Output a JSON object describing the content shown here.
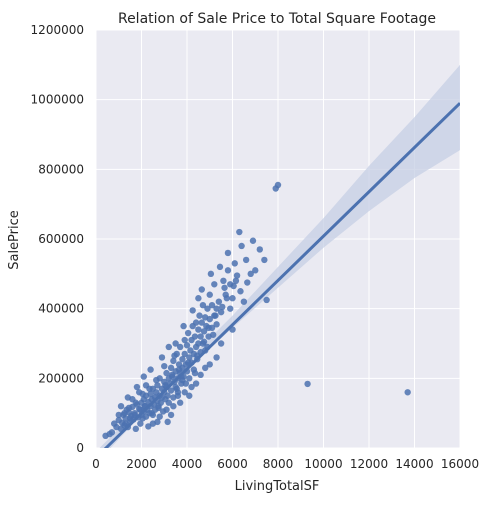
{
  "chart_data": {
    "type": "scatter",
    "title": "Relation of Sale Price to Total Square Footage",
    "xlabel": "LivingTotalSF",
    "ylabel": "SalePrice",
    "xlim": [
      0,
      16000
    ],
    "ylim": [
      0,
      1200000
    ],
    "x_ticks": [
      "0",
      "2000",
      "4000",
      "6000",
      "8000",
      "10000",
      "12000",
      "14000",
      "16000"
    ],
    "y_ticks": [
      "0",
      "200000",
      "400000",
      "600000",
      "800000",
      "1000000",
      "1200000"
    ],
    "grid": true,
    "series": [
      {
        "type": "scatter",
        "points": [
          [
            420,
            35000
          ],
          [
            700,
            45000
          ],
          [
            900,
            60000
          ],
          [
            1000,
            80000
          ],
          [
            1100,
            55000
          ],
          [
            1150,
            72000
          ],
          [
            1200,
            95000
          ],
          [
            1250,
            65000
          ],
          [
            1300,
            85000
          ],
          [
            1350,
            110000
          ],
          [
            1400,
            60000
          ],
          [
            1450,
            102000
          ],
          [
            1500,
            75000
          ],
          [
            1550,
            92000
          ],
          [
            1600,
            118000
          ],
          [
            1650,
            82000
          ],
          [
            1700,
            100000
          ],
          [
            1750,
            55000
          ],
          [
            1800,
            125000
          ],
          [
            1850,
            88000
          ],
          [
            1900,
            112000
          ],
          [
            1950,
            70000
          ],
          [
            2000,
            130000
          ],
          [
            2000,
            95000
          ],
          [
            2050,
            85000
          ],
          [
            2100,
            140000
          ],
          [
            2100,
            105000
          ],
          [
            2150,
            120000
          ],
          [
            2200,
            90000
          ],
          [
            2200,
            150000
          ],
          [
            2250,
            110000
          ],
          [
            2300,
            132000
          ],
          [
            2300,
            62000
          ],
          [
            2350,
            100000
          ],
          [
            2400,
            155000
          ],
          [
            2400,
            120000
          ],
          [
            2450,
            140000
          ],
          [
            2500,
            95000
          ],
          [
            2500,
            170000
          ],
          [
            2550,
            125000
          ],
          [
            2600,
            145000
          ],
          [
            2600,
            110000
          ],
          [
            2650,
            160000
          ],
          [
            2700,
            135000
          ],
          [
            2700,
            180000
          ],
          [
            2750,
            115000
          ],
          [
            2800,
            150000
          ],
          [
            2800,
            200000
          ],
          [
            2850,
            130000
          ],
          [
            2900,
            170000
          ],
          [
            2900,
            145000
          ],
          [
            2950,
            105000
          ],
          [
            3000,
            160000
          ],
          [
            3000,
            190000
          ],
          [
            3050,
            140000
          ],
          [
            3100,
            215000
          ],
          [
            3100,
            175000
          ],
          [
            3150,
            150000
          ],
          [
            3200,
            200000
          ],
          [
            3200,
            130000
          ],
          [
            3250,
            185000
          ],
          [
            3300,
            230000
          ],
          [
            3300,
            165000
          ],
          [
            3350,
            205000
          ],
          [
            3400,
            145000
          ],
          [
            3400,
            250000
          ],
          [
            3450,
            190000
          ],
          [
            3500,
            220000
          ],
          [
            3500,
            175000
          ],
          [
            3550,
            270000
          ],
          [
            3600,
            200000
          ],
          [
            3600,
            160000
          ],
          [
            3650,
            240000
          ],
          [
            3700,
            215000
          ],
          [
            3700,
            290000
          ],
          [
            3750,
            185000
          ],
          [
            3800,
            255000
          ],
          [
            3800,
            230000
          ],
          [
            3850,
            205000
          ],
          [
            3900,
            310000
          ],
          [
            3900,
            270000
          ],
          [
            3950,
            240000
          ],
          [
            4000,
            220000
          ],
          [
            4000,
            295000
          ],
          [
            4050,
            330000
          ],
          [
            4100,
            260000
          ],
          [
            4100,
            200000
          ],
          [
            4150,
            280000
          ],
          [
            4200,
            310000
          ],
          [
            4200,
            245000
          ],
          [
            4250,
            350000
          ],
          [
            4300,
            270000
          ],
          [
            4300,
            225000
          ],
          [
            4350,
            320000
          ],
          [
            4400,
            290000
          ],
          [
            4400,
            360000
          ],
          [
            4450,
            255000
          ],
          [
            4500,
            340000
          ],
          [
            4500,
            300000
          ],
          [
            4550,
            380000
          ],
          [
            4600,
            275000
          ],
          [
            4600,
            320000
          ],
          [
            4650,
            360000
          ],
          [
            4700,
            300000
          ],
          [
            4700,
            410000
          ],
          [
            4750,
            335000
          ],
          [
            4800,
            375000
          ],
          [
            4800,
            280000
          ],
          [
            4850,
            350000
          ],
          [
            4900,
            400000
          ],
          [
            4950,
            320000
          ],
          [
            5000,
            370000
          ],
          [
            5000,
            440000
          ],
          [
            5100,
            345000
          ],
          [
            5100,
            410000
          ],
          [
            5200,
            380000
          ],
          [
            5200,
            470000
          ],
          [
            5300,
            355000
          ],
          [
            5400,
            420000
          ],
          [
            5500,
            390000
          ],
          [
            5600,
            480000
          ],
          [
            5700,
            440000
          ],
          [
            5800,
            510000
          ],
          [
            5900,
            470000
          ],
          [
            6000,
            430000
          ],
          [
            6100,
            530000
          ],
          [
            6200,
            495000
          ],
          [
            6400,
            580000
          ],
          [
            6600,
            540000
          ],
          [
            6900,
            595000
          ],
          [
            7200,
            570000
          ],
          [
            7500,
            425000
          ],
          [
            7900,
            745000
          ],
          [
            8000,
            755000
          ],
          [
            9300,
            184000
          ],
          [
            13700,
            160000
          ],
          [
            1600,
            140000
          ],
          [
            1900,
            160000
          ],
          [
            2200,
            180000
          ],
          [
            2500,
            70000
          ],
          [
            2800,
            90000
          ],
          [
            3100,
            110000
          ],
          [
            3400,
            120000
          ],
          [
            3700,
            130000
          ],
          [
            3300,
            95000
          ],
          [
            2700,
            75000
          ],
          [
            3600,
            150000
          ],
          [
            4200,
            175000
          ],
          [
            3900,
            160000
          ],
          [
            4600,
            210000
          ],
          [
            5000,
            240000
          ],
          [
            5300,
            260000
          ],
          [
            4100,
            150000
          ],
          [
            3800,
            195000
          ],
          [
            3450,
            265000
          ],
          [
            3000,
            235000
          ],
          [
            2650,
            195000
          ],
          [
            2350,
            170000
          ],
          [
            2050,
            155000
          ],
          [
            1750,
            130000
          ],
          [
            1450,
            115000
          ],
          [
            1250,
            100000
          ],
          [
            1000,
            95000
          ],
          [
            4400,
            185000
          ],
          [
            4800,
            230000
          ],
          [
            5500,
            300000
          ],
          [
            6000,
            340000
          ],
          [
            6500,
            420000
          ],
          [
            6800,
            500000
          ],
          [
            5800,
            560000
          ],
          [
            6300,
            620000
          ],
          [
            5300,
            400000
          ],
          [
            4500,
            430000
          ],
          [
            4900,
            290000
          ],
          [
            3500,
            300000
          ],
          [
            2900,
            260000
          ],
          [
            3200,
            290000
          ],
          [
            2400,
            225000
          ],
          [
            2100,
            205000
          ],
          [
            1800,
            175000
          ],
          [
            1400,
            145000
          ],
          [
            1100,
            120000
          ],
          [
            800,
            70000
          ],
          [
            600,
            40000
          ],
          [
            3150,
            75000
          ],
          [
            3850,
            350000
          ],
          [
            4250,
            395000
          ],
          [
            4650,
            455000
          ],
          [
            5050,
            500000
          ],
          [
            5450,
            520000
          ],
          [
            5650,
            460000
          ],
          [
            6150,
            480000
          ],
          [
            5900,
            400000
          ],
          [
            5150,
            325000
          ],
          [
            4350,
            215000
          ],
          [
            3950,
            185000
          ],
          [
            3550,
            170000
          ],
          [
            2750,
            120000
          ],
          [
            2450,
            100000
          ],
          [
            2150,
            120000
          ],
          [
            1950,
            110000
          ],
          [
            1700,
            95000
          ],
          [
            1500,
            85000
          ],
          [
            1300,
            70000
          ],
          [
            3050,
            180000
          ],
          [
            3350,
            210000
          ],
          [
            3650,
            225000
          ],
          [
            3750,
            205000
          ],
          [
            4050,
            245000
          ],
          [
            4450,
            265000
          ],
          [
            4750,
            305000
          ],
          [
            4950,
            345000
          ],
          [
            5250,
            380000
          ],
          [
            5550,
            405000
          ],
          [
            5750,
            430000
          ],
          [
            6050,
            465000
          ],
          [
            6350,
            450000
          ],
          [
            6650,
            475000
          ],
          [
            7000,
            510000
          ],
          [
            7400,
            540000
          ]
        ]
      },
      {
        "type": "line",
        "name": "",
        "x": [
          0,
          16000
        ],
        "y": [
          -28000,
          990000
        ]
      },
      {
        "type": "band",
        "x": [
          0,
          2000,
          4000,
          6000,
          8000,
          10000,
          12000,
          14000,
          16000
        ],
        "lower": [
          -45000,
          95000,
          225000,
          345000,
          460000,
          575000,
          680000,
          775000,
          855000
        ],
        "upper": [
          -10000,
          120000,
          250000,
          380000,
          520000,
          660000,
          810000,
          950000,
          1100000
        ]
      }
    ],
    "colors": {
      "point": "#4c72b0",
      "line": "#4c72b0",
      "band": "#c6cfe4",
      "plot_background": "#eaeaf2",
      "grid": "#ffffff"
    }
  }
}
